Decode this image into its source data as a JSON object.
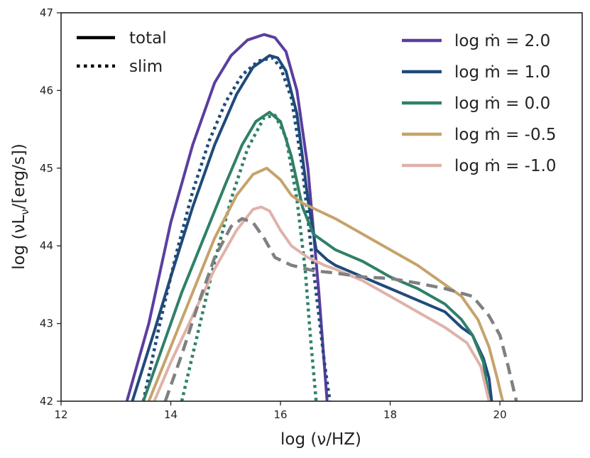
{
  "chart_data": {
    "type": "line",
    "title": "",
    "xlabel": "log (ν/HZ)",
    "ylabel": "log (νL_ν/[erg/s])",
    "ylabel_main": "log (νL",
    "ylabel_sub": "ν",
    "ylabel_tail": "/[erg/s])",
    "xlim": [
      12,
      21.5
    ],
    "ylim": [
      42,
      47
    ],
    "xticks": [
      12,
      14,
      16,
      18,
      20
    ],
    "yticks": [
      42,
      43,
      44,
      45,
      46,
      47
    ],
    "grid": false,
    "style_legend": {
      "placement": "top-left",
      "entries": [
        {
          "label": "total",
          "style": "solid"
        },
        {
          "label": "slim",
          "style": "dotted"
        }
      ]
    },
    "series_legend": {
      "placement": "top-right",
      "prefix": "log ṁ = ",
      "entries": [
        {
          "label": "log ṁ = 2.0",
          "value_text": "2.0",
          "color": "#5b3ea0"
        },
        {
          "label": "log ṁ = 1.0",
          "value_text": "1.0",
          "color": "#1f4a7a"
        },
        {
          "label": "log ṁ = 0.0",
          "value_text": "0.0",
          "color": "#2f8068"
        },
        {
          "label": "log ṁ = -0.5",
          "value_text": "-0.5",
          "color": "#c6a36b"
        },
        {
          "label": "log ṁ = -1.0",
          "value_text": "-1.0",
          "color": "#e0b2aa"
        }
      ]
    },
    "series": [
      {
        "name": "log ṁ = 2.0 (total)",
        "color": "#5b3ea0",
        "style": "solid",
        "x": [
          13.2,
          13.6,
          14.0,
          14.4,
          14.8,
          15.1,
          15.4,
          15.7,
          15.9,
          16.1,
          16.3,
          16.5,
          16.7,
          16.85
        ],
        "y": [
          42.0,
          43.0,
          44.3,
          45.3,
          46.1,
          46.45,
          46.65,
          46.72,
          46.68,
          46.5,
          46.0,
          45.0,
          43.4,
          42.0
        ]
      },
      {
        "name": "log ṁ = 1.0 (total)",
        "color": "#1f4a7a",
        "style": "solid",
        "x": [
          13.3,
          13.7,
          14.0,
          14.4,
          14.8,
          15.2,
          15.5,
          15.8,
          15.95,
          16.1,
          16.3,
          16.5,
          16.65,
          16.85,
          17.0,
          17.5,
          18.0,
          18.5,
          19.0,
          19.3,
          19.5,
          19.7,
          19.8,
          19.85
        ],
        "y": [
          42.0,
          42.9,
          43.6,
          44.5,
          45.3,
          45.95,
          46.3,
          46.45,
          46.42,
          46.25,
          45.7,
          44.6,
          43.95,
          43.82,
          43.75,
          43.6,
          43.45,
          43.3,
          43.15,
          42.95,
          42.85,
          42.55,
          42.3,
          42.0
        ]
      },
      {
        "name": "log ṁ = 1.0 (slim)",
        "color": "#1f4a7a",
        "style": "dotted",
        "x": [
          13.5,
          13.8,
          14.1,
          14.4,
          14.7,
          15.0,
          15.3,
          15.6,
          15.85,
          16.0,
          16.2,
          16.4,
          16.6,
          16.8,
          16.9
        ],
        "y": [
          42.0,
          43.0,
          43.9,
          44.7,
          45.35,
          45.85,
          46.2,
          46.38,
          46.42,
          46.3,
          45.9,
          45.0,
          43.7,
          42.5,
          42.0
        ]
      },
      {
        "name": "log ṁ = 0.0 (total)",
        "color": "#2f8068",
        "style": "solid",
        "x": [
          13.5,
          13.9,
          14.2,
          14.6,
          15.0,
          15.3,
          15.55,
          15.8,
          16.0,
          16.2,
          16.4,
          16.6,
          16.8,
          17.0,
          17.5,
          18.0,
          18.5,
          19.0,
          19.3,
          19.5,
          19.7,
          19.8
        ],
        "y": [
          42.0,
          42.8,
          43.4,
          44.1,
          44.8,
          45.3,
          45.6,
          45.72,
          45.6,
          45.15,
          44.5,
          44.15,
          44.05,
          43.95,
          43.8,
          43.6,
          43.45,
          43.25,
          43.05,
          42.85,
          42.5,
          42.0
        ]
      },
      {
        "name": "log ṁ = 0.0 (slim)",
        "color": "#2f8068",
        "style": "dotted",
        "x": [
          14.2,
          14.5,
          14.8,
          15.1,
          15.4,
          15.7,
          15.9,
          16.1,
          16.3,
          16.45,
          16.55,
          16.65
        ],
        "y": [
          42.0,
          42.9,
          43.8,
          44.6,
          45.25,
          45.65,
          45.68,
          45.4,
          44.6,
          43.7,
          42.8,
          42.0
        ]
      },
      {
        "name": "log ṁ = -0.5 (total)",
        "color": "#c6a36b",
        "style": "solid",
        "x": [
          13.6,
          14.0,
          14.4,
          14.8,
          15.2,
          15.5,
          15.75,
          16.0,
          16.2,
          16.4,
          16.7,
          17.0,
          17.5,
          18.0,
          18.5,
          19.0,
          19.3,
          19.6,
          19.8,
          19.95,
          20.05
        ],
        "y": [
          42.0,
          42.7,
          43.4,
          44.1,
          44.65,
          44.92,
          45.0,
          44.85,
          44.65,
          44.55,
          44.45,
          44.35,
          44.15,
          43.95,
          43.75,
          43.5,
          43.35,
          43.05,
          42.7,
          42.3,
          42.0
        ]
      },
      {
        "name": "log ṁ = -1.0 (total)",
        "color": "#e0b2aa",
        "style": "solid",
        "x": [
          13.7,
          14.0,
          14.4,
          14.8,
          15.2,
          15.5,
          15.65,
          15.8,
          16.0,
          16.2,
          16.5,
          16.8,
          17.0,
          17.5,
          18.0,
          18.5,
          19.0,
          19.4,
          19.65,
          19.8
        ],
        "y": [
          42.0,
          42.5,
          43.1,
          43.7,
          44.2,
          44.47,
          44.5,
          44.45,
          44.2,
          44.0,
          43.85,
          43.75,
          43.7,
          43.55,
          43.35,
          43.15,
          42.95,
          42.75,
          42.45,
          42.0
        ]
      },
      {
        "name": "reference (dashed)",
        "color": "#808080",
        "style": "dashed",
        "x": [
          13.9,
          14.2,
          14.5,
          14.8,
          15.1,
          15.3,
          15.5,
          15.7,
          15.9,
          16.2,
          16.6,
          17.0,
          17.5,
          18.0,
          18.5,
          19.0,
          19.5,
          19.8,
          20.0,
          20.15,
          20.3
        ],
        "y": [
          42.0,
          42.6,
          43.25,
          43.85,
          44.25,
          44.35,
          44.3,
          44.1,
          43.85,
          43.75,
          43.68,
          43.65,
          43.6,
          43.58,
          43.52,
          43.45,
          43.35,
          43.1,
          42.85,
          42.45,
          42.0
        ]
      }
    ]
  }
}
